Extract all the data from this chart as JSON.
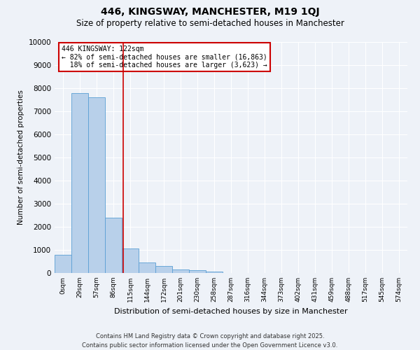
{
  "title": "446, KINGSWAY, MANCHESTER, M19 1QJ",
  "subtitle": "Size of property relative to semi-detached houses in Manchester",
  "xlabel": "Distribution of semi-detached houses by size in Manchester",
  "ylabel": "Number of semi-detached properties",
  "property_label": "446 KINGSWAY: 122sqm",
  "pct_smaller": 82,
  "count_smaller": 16863,
  "pct_larger": 18,
  "count_larger": 3623,
  "bin_labels": [
    "0sqm",
    "29sqm",
    "57sqm",
    "86sqm",
    "115sqm",
    "144sqm",
    "172sqm",
    "201sqm",
    "230sqm",
    "258sqm",
    "287sqm",
    "316sqm",
    "344sqm",
    "373sqm",
    "402sqm",
    "431sqm",
    "459sqm",
    "488sqm",
    "517sqm",
    "545sqm",
    "574sqm"
  ],
  "bar_values": [
    800,
    7800,
    7600,
    2400,
    1050,
    450,
    290,
    160,
    110,
    50,
    0,
    0,
    0,
    0,
    0,
    0,
    0,
    0,
    0,
    0,
    0
  ],
  "bar_color": "#b8d0ea",
  "bar_edge_color": "#5a9fd4",
  "vline_color": "#cc0000",
  "vline_bin": 3.57,
  "annotation_box_color": "#cc0000",
  "ylim": [
    0,
    10000
  ],
  "yticks": [
    0,
    1000,
    2000,
    3000,
    4000,
    5000,
    6000,
    7000,
    8000,
    9000,
    10000
  ],
  "background_color": "#eef2f8",
  "grid_color": "#ffffff",
  "footer": "Contains HM Land Registry data © Crown copyright and database right 2025.\nContains public sector information licensed under the Open Government Licence v3.0."
}
